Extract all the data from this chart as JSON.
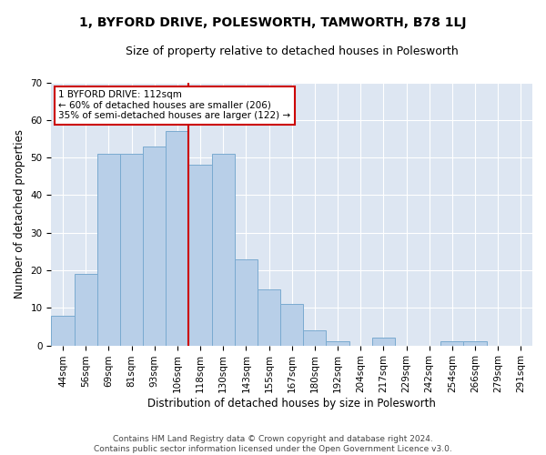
{
  "title": "1, BYFORD DRIVE, POLESWORTH, TAMWORTH, B78 1LJ",
  "subtitle": "Size of property relative to detached houses in Polesworth",
  "xlabel": "Distribution of detached houses by size in Polesworth",
  "ylabel": "Number of detached properties",
  "categories": [
    "44sqm",
    "56sqm",
    "69sqm",
    "81sqm",
    "93sqm",
    "106sqm",
    "118sqm",
    "130sqm",
    "143sqm",
    "155sqm",
    "167sqm",
    "180sqm",
    "192sqm",
    "204sqm",
    "217sqm",
    "229sqm",
    "242sqm",
    "254sqm",
    "266sqm",
    "279sqm",
    "291sqm"
  ],
  "values": [
    8,
    19,
    51,
    51,
    53,
    57,
    48,
    51,
    23,
    15,
    11,
    4,
    1,
    0,
    2,
    0,
    0,
    1,
    1,
    0,
    0
  ],
  "bar_color": "#b8cfe8",
  "bar_edge_color": "#7aaad0",
  "annotation_text": "1 BYFORD DRIVE: 112sqm\n← 60% of detached houses are smaller (206)\n35% of semi-detached houses are larger (122) →",
  "annotation_box_color": "#ffffff",
  "annotation_box_edge": "#cc0000",
  "vline_color": "#cc0000",
  "vline_x_index": 6,
  "ylim": [
    0,
    70
  ],
  "background_color": "#dde6f2",
  "footer_text": "Contains HM Land Registry data © Crown copyright and database right 2024.\nContains public sector information licensed under the Open Government Licence v3.0.",
  "title_fontsize": 10,
  "subtitle_fontsize": 9,
  "tick_fontsize": 7.5,
  "ylabel_fontsize": 8.5,
  "xlabel_fontsize": 8.5,
  "footer_fontsize": 6.5
}
